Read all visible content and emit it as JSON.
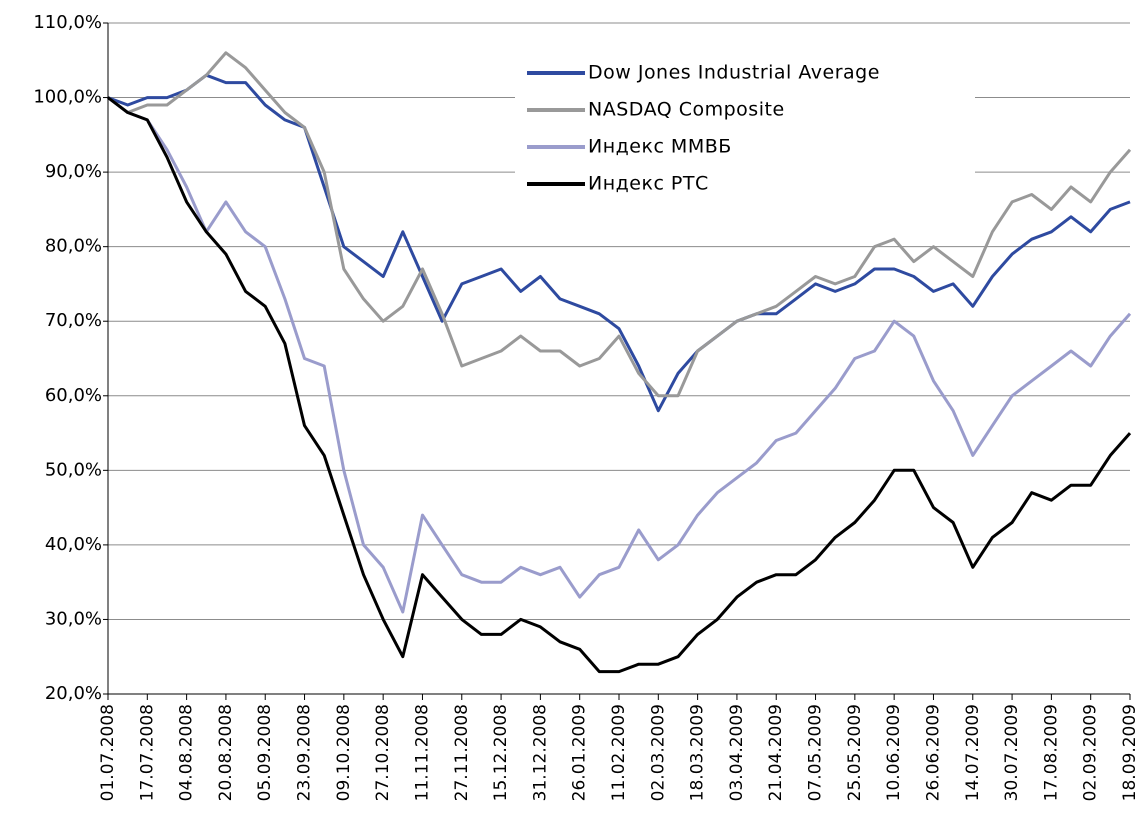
{
  "chart_data": {
    "type": "line",
    "categories": [
      "01.07.2008",
      null,
      "17.07.2008",
      null,
      "04.08.2008",
      null,
      "20.08.2008",
      null,
      "05.09.2008",
      null,
      "23.09.2008",
      null,
      "09.10.2008",
      null,
      "27.10.2008",
      null,
      "11.11.2008",
      null,
      "27.11.2008",
      null,
      "15.12.2008",
      null,
      "31.12.2008",
      null,
      "26.01.2009",
      null,
      "11.02.2009",
      null,
      "02.03.2009",
      null,
      "18.03.2009",
      null,
      "03.04.2009",
      null,
      "21.04.2009",
      null,
      "07.05.2009",
      null,
      "25.05.2009",
      null,
      "10.06.2009",
      null,
      "26.06.2009",
      null,
      "14.07.2009",
      null,
      "30.07.2009",
      null,
      "17.08.2009",
      null,
      "02.09.2009",
      null,
      "18.09.2009"
    ],
    "series": [
      {
        "name": "Dow Jones Industrial Average",
        "color": "#2e4aa0",
        "values": [
          100,
          99,
          100,
          100,
          101,
          103,
          102,
          102,
          99,
          97,
          96,
          88,
          80,
          78,
          76,
          82,
          76,
          70,
          75,
          76,
          77,
          74,
          76,
          73,
          72,
          71,
          69,
          64,
          58,
          63,
          66,
          68,
          70,
          71,
          71,
          73,
          75,
          74,
          75,
          77,
          77,
          76,
          74,
          75,
          72,
          76,
          79,
          81,
          82,
          84,
          82,
          85,
          86
        ]
      },
      {
        "name": "NASDAQ Composite",
        "color": "#999999",
        "values": [
          100,
          98,
          99,
          99,
          101,
          103,
          106,
          104,
          101,
          98,
          96,
          90,
          77,
          73,
          70,
          72,
          77,
          71,
          64,
          65,
          66,
          68,
          66,
          66,
          64,
          65,
          68,
          63,
          60,
          60,
          66,
          68,
          70,
          71,
          72,
          74,
          76,
          75,
          76,
          80,
          81,
          78,
          80,
          78,
          76,
          82,
          86,
          87,
          85,
          88,
          86,
          90,
          93
        ]
      },
      {
        "name": "Индекс ММВБ",
        "color": "#9a9ccc",
        "values": [
          100,
          98,
          97,
          93,
          88,
          82,
          86,
          82,
          80,
          73,
          65,
          64,
          50,
          40,
          37,
          31,
          44,
          40,
          36,
          35,
          35,
          37,
          36,
          37,
          33,
          36,
          37,
          42,
          38,
          40,
          44,
          47,
          49,
          51,
          54,
          55,
          58,
          61,
          65,
          66,
          70,
          68,
          62,
          58,
          52,
          56,
          60,
          62,
          64,
          66,
          64,
          68,
          71
        ]
      },
      {
        "name": "Индекс РТС",
        "color": "#000000",
        "values": [
          100,
          98,
          97,
          92,
          86,
          82,
          79,
          74,
          72,
          67,
          56,
          52,
          44,
          36,
          30,
          25,
          36,
          33,
          30,
          28,
          28,
          30,
          29,
          27,
          26,
          23,
          23,
          24,
          24,
          25,
          28,
          30,
          33,
          35,
          36,
          36,
          38,
          41,
          43,
          46,
          50,
          50,
          45,
          43,
          37,
          41,
          43,
          47,
          46,
          48,
          48,
          52,
          55
        ]
      }
    ],
    "ylim": [
      20,
      110
    ],
    "yticks": [
      {
        "value": 20,
        "label": "20,0%"
      },
      {
        "value": 30,
        "label": "30,0%"
      },
      {
        "value": 40,
        "label": "40,0%"
      },
      {
        "value": 50,
        "label": "50,0%"
      },
      {
        "value": 60,
        "label": "60,0%"
      },
      {
        "value": 70,
        "label": "70,0%"
      },
      {
        "value": 80,
        "label": "80,0%"
      },
      {
        "value": 90,
        "label": "90,0%"
      },
      {
        "value": 100,
        "label": "100,0%"
      },
      {
        "value": 110,
        "label": "110,0%"
      }
    ],
    "grid": true
  }
}
